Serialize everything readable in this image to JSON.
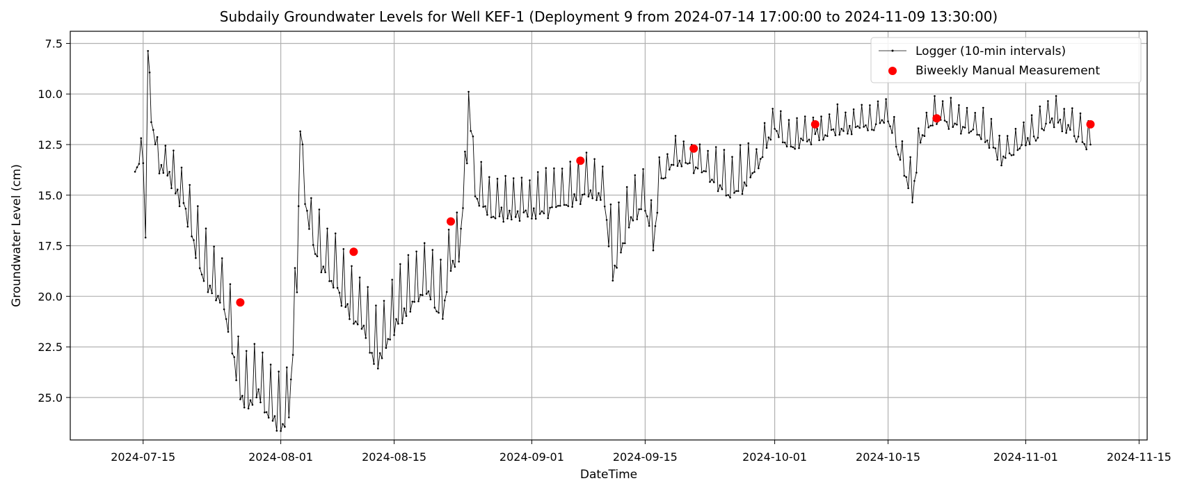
{
  "chart_data": {
    "type": "line",
    "title": "Subdaily Groundwater Levels for Well KEF-1 (Deployment 9 from 2024-07-14 17:00:00 to 2024-11-09 13:30:00)",
    "xlabel": "DateTime",
    "ylabel": "Groundwater Level (cm)",
    "y_inverted": true,
    "ylim": [
      27.1,
      6.9
    ],
    "xlim": [
      "2024-07-06",
      "2024-11-16"
    ],
    "xticks": [
      "2024-07-15",
      "2024-08-01",
      "2024-08-15",
      "2024-09-01",
      "2024-09-15",
      "2024-10-01",
      "2024-10-15",
      "2024-11-01",
      "2024-11-15"
    ],
    "yticks": [
      "7.5",
      "10.0",
      "12.5",
      "15.0",
      "17.5",
      "20.0",
      "22.5",
      "25.0"
    ],
    "grid": true,
    "legend_position": "top-right",
    "series": [
      {
        "name": "Logger (10-min intervals)",
        "style": "line-with-dot-markers",
        "color": "#000000",
        "points": [
          [
            "2024-07-14",
            13.5
          ],
          [
            "2024-07-15",
            13.1
          ],
          [
            "2024-07-15.3",
            16.8
          ],
          [
            "2024-07-15.6",
            8.2
          ],
          [
            "2024-07-16",
            11.0
          ],
          [
            "2024-07-17",
            13.5
          ],
          [
            "2024-07-18",
            13.6
          ],
          [
            "2024-07-19",
            14.5
          ],
          [
            "2024-07-20",
            15.0
          ],
          [
            "2024-07-21",
            16.5
          ],
          [
            "2024-07-22",
            18.0
          ],
          [
            "2024-07-23",
            19.0
          ],
          [
            "2024-07-24",
            19.5
          ],
          [
            "2024-07-25",
            20.0
          ],
          [
            "2024-07-26",
            22.0
          ],
          [
            "2024-07-27",
            24.5
          ],
          [
            "2024-07-28",
            25.0
          ],
          [
            "2024-07-29",
            24.0
          ],
          [
            "2024-07-30",
            25.0
          ],
          [
            "2024-07-31",
            25.5
          ],
          [
            "2024-08-01",
            26.0
          ],
          [
            "2024-08-02",
            25.0
          ],
          [
            "2024-08-03",
            19.0
          ],
          [
            "2024-08-03.4",
            11.6
          ],
          [
            "2024-08-04",
            15.0
          ],
          [
            "2024-08-05",
            17.0
          ],
          [
            "2024-08-06",
            18.0
          ],
          [
            "2024-08-07",
            18.5
          ],
          [
            "2024-08-08",
            19.0
          ],
          [
            "2024-08-09",
            20.0
          ],
          [
            "2024-08-10",
            20.5
          ],
          [
            "2024-08-11",
            21.0
          ],
          [
            "2024-08-12",
            22.0
          ],
          [
            "2024-08-13",
            22.8
          ],
          [
            "2024-08-14",
            22.0
          ],
          [
            "2024-08-15",
            21.0
          ],
          [
            "2024-08-16",
            20.5
          ],
          [
            "2024-08-17",
            20.0
          ],
          [
            "2024-08-18",
            19.5
          ],
          [
            "2024-08-19",
            19.0
          ],
          [
            "2024-08-20",
            20.0
          ],
          [
            "2024-08-21",
            20.5
          ],
          [
            "2024-08-22",
            18.0
          ],
          [
            "2024-08-23",
            17.5
          ],
          [
            "2024-08-24",
            13.0
          ],
          [
            "2024-08-24.2",
            9.6
          ],
          [
            "2024-08-25",
            14.5
          ],
          [
            "2024-08-27",
            15.5
          ],
          [
            "2024-08-30",
            15.5
          ],
          [
            "2024-09-02",
            15.5
          ],
          [
            "2024-09-05",
            15.0
          ],
          [
            "2024-09-08",
            14.5
          ],
          [
            "2024-09-10",
            15.0
          ],
          [
            "2024-09-11",
            18.5
          ],
          [
            "2024-09-13",
            16.0
          ],
          [
            "2024-09-15",
            15.0
          ],
          [
            "2024-09-16",
            17.0
          ],
          [
            "2024-09-17",
            14.0
          ],
          [
            "2024-09-19",
            13.0
          ],
          [
            "2024-09-22",
            13.5
          ],
          [
            "2024-09-25",
            14.5
          ],
          [
            "2024-09-28",
            14.0
          ],
          [
            "2024-10-01",
            11.5
          ],
          [
            "2024-10-03",
            12.5
          ],
          [
            "2024-10-06",
            11.8
          ],
          [
            "2024-10-09",
            11.6
          ],
          [
            "2024-10-12",
            11.5
          ],
          [
            "2024-10-15",
            11.2
          ],
          [
            "2024-10-17",
            13.5
          ],
          [
            "2024-10-18",
            14.8
          ],
          [
            "2024-10-19",
            12.0
          ],
          [
            "2024-10-21",
            11.0
          ],
          [
            "2024-10-24",
            11.5
          ],
          [
            "2024-10-27",
            11.8
          ],
          [
            "2024-10-29",
            13.0
          ],
          [
            "2024-10-31",
            12.5
          ],
          [
            "2024-11-02",
            12.0
          ],
          [
            "2024-11-04",
            11.0
          ],
          [
            "2024-11-06",
            11.5
          ],
          [
            "2024-11-09",
            12.5
          ]
        ]
      },
      {
        "name": "Biweekly Manual Measurement",
        "style": "scatter",
        "color": "#ff0000",
        "points": [
          [
            "2024-07-27",
            20.3
          ],
          [
            "2024-08-10",
            17.8
          ],
          [
            "2024-08-22",
            16.3
          ],
          [
            "2024-09-07",
            13.3
          ],
          [
            "2024-09-21",
            12.7
          ],
          [
            "2024-10-06",
            11.5
          ],
          [
            "2024-10-21",
            11.2
          ],
          [
            "2024-11-09",
            11.5
          ]
        ]
      }
    ]
  }
}
